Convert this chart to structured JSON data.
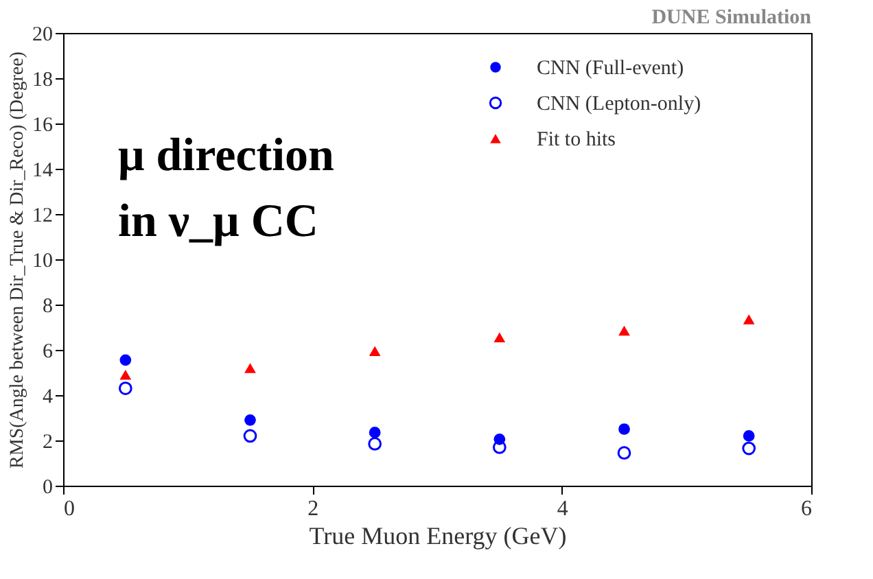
{
  "chart_data": {
    "type": "scatter",
    "xlabel": "True Muon Energy (GeV)",
    "ylabel": "RMS(Angle between Dir_True & Dir_Reco) (Degree)",
    "annotations": [
      "DUNE Simulation",
      "μ direction",
      "in ν_μ CC"
    ],
    "x": [
      0.5,
      1.5,
      2.5,
      3.5,
      4.5,
      5.5
    ],
    "series": [
      {
        "name": "CNN (Full-event)",
        "color": "#0000ff",
        "marker": "circle",
        "values": [
          5.55,
          2.9,
          2.35,
          2.05,
          2.5,
          2.2
        ]
      },
      {
        "name": "CNN (Lepton-only)",
        "color": "#0000ff",
        "marker": "open circle",
        "values": [
          4.3,
          2.2,
          1.85,
          1.7,
          1.45,
          1.65
        ]
      },
      {
        "name": "Fit to hits",
        "color": "#ff0000",
        "marker": "triangle",
        "values": [
          4.9,
          5.2,
          5.95,
          6.55,
          6.85,
          7.35
        ]
      }
    ],
    "xlim": [
      0,
      6
    ],
    "xticks": [
      0,
      2,
      4,
      6
    ],
    "ylim": [
      0,
      20
    ],
    "yticks": [
      0,
      2,
      4,
      6,
      8,
      10,
      12,
      14,
      16,
      18,
      20
    ],
    "grid": false,
    "legend": "top right"
  }
}
